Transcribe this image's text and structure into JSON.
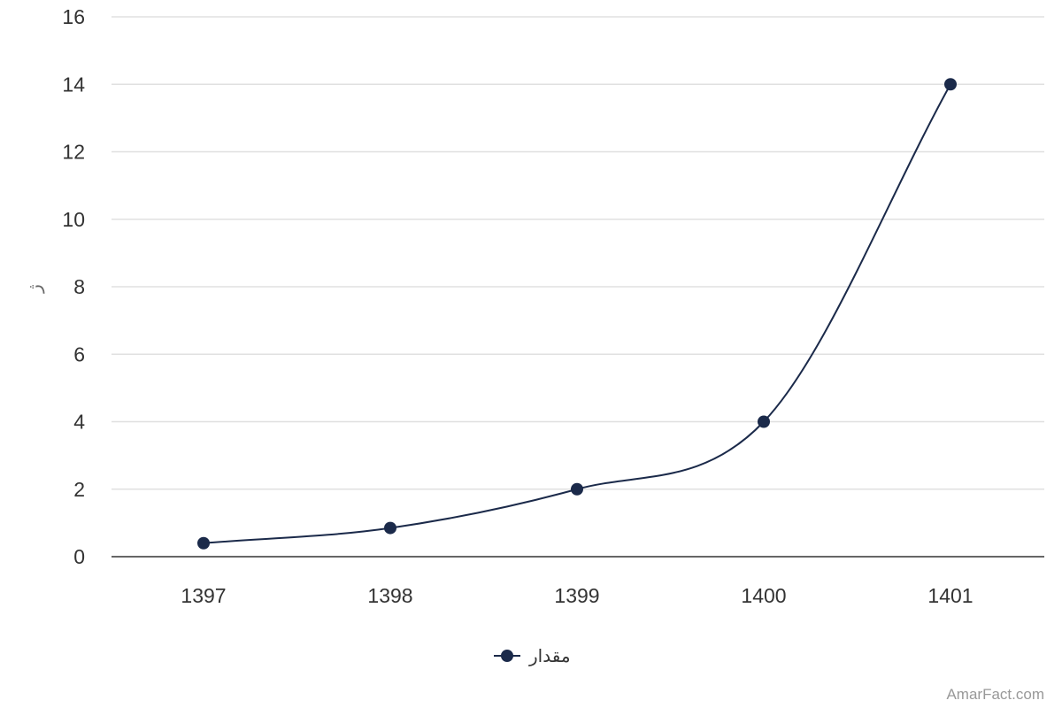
{
  "chart_data": {
    "type": "line",
    "categories": [
      "1397",
      "1398",
      "1399",
      "1400",
      "1401"
    ],
    "series": [
      {
        "name": "مقدار",
        "values": [
          0.4,
          0.85,
          2.0,
          4.0,
          14.0
        ],
        "color": "#1b2a4a"
      }
    ],
    "ylabel": "ژ",
    "ylim": [
      0,
      16
    ],
    "yticks": [
      0,
      2,
      4,
      6,
      8,
      10,
      12,
      14,
      16
    ],
    "grid": true,
    "legend": "bottom-center",
    "smooth": true
  },
  "credit": "AmarFact.com"
}
